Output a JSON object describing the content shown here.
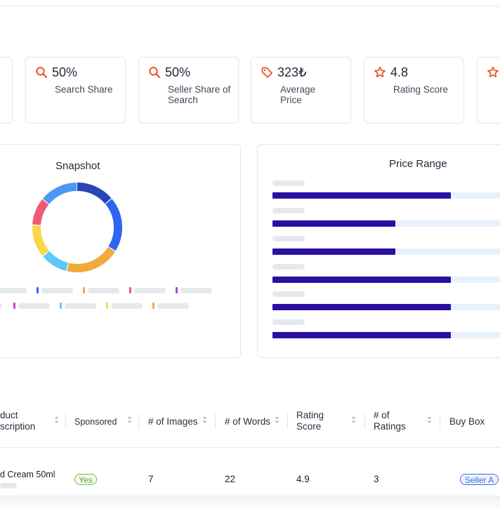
{
  "metrics": [
    {
      "icon": "search-icon",
      "value": "50%",
      "label": "Search Share"
    },
    {
      "icon": "search-icon",
      "value": "50%",
      "label": "Seller Share of Search"
    },
    {
      "icon": "tag-icon",
      "value": "323₺",
      "label": "Average Price"
    },
    {
      "icon": "star-icon",
      "value": "4.8",
      "label": "Rating Score"
    }
  ],
  "snapshot": {
    "title": "Snapshot",
    "segments": [
      {
        "color": "#2a46b6",
        "fraction": 0.14
      },
      {
        "color": "#2f66f0",
        "fraction": 0.2
      },
      {
        "color": "#f2aa3b",
        "fraction": 0.2
      },
      {
        "color": "#5ccaf6",
        "fraction": 0.1
      },
      {
        "color": "#f8d84a",
        "fraction": 0.12
      },
      {
        "color": "#ef5a78",
        "fraction": 0.1
      },
      {
        "color": "#4a98f2",
        "fraction": 0.14
      }
    ]
  },
  "price_range": {
    "title": "Price Range",
    "bars": [
      0.77,
      0.53,
      0.53,
      0.77,
      0.77,
      0.77
    ]
  },
  "table": {
    "headers": [
      "duct\nscription",
      "Sponsored",
      "# of Images",
      "# of Words",
      "Rating\nScore",
      "# of\nRatings",
      "Buy Box"
    ],
    "row": {
      "product": "d Cream 50ml",
      "sponsored": "Yes",
      "images": "7",
      "words": "22",
      "rating": "4.9",
      "ratings": "3",
      "buybox": "Seller A"
    }
  },
  "colors": {
    "accent": "#e8541e",
    "bar": "#2d0ea2",
    "track": "#e9f1fc",
    "badge_green": "#6cc04a",
    "badge_blue": "#3b6ee0"
  }
}
